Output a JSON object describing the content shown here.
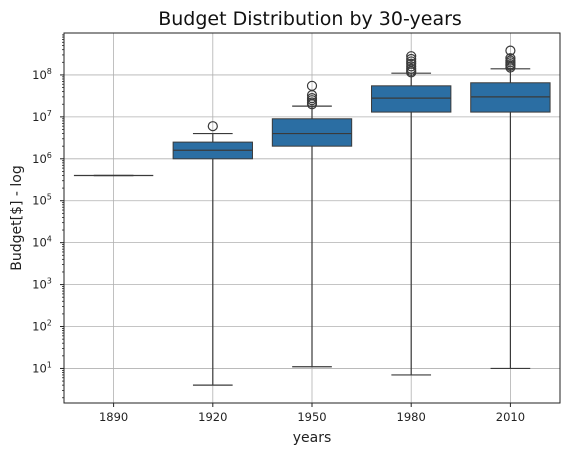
{
  "chart_data": {
    "type": "box",
    "title": "Budget Distribution by 30-years",
    "xlabel": "years",
    "ylabel": "Budget[$] - log",
    "y_scale": "log",
    "ylim": [
      1.5,
      1000000000
    ],
    "grid": true,
    "color": "#2b6ea3",
    "categories": [
      "1890",
      "1920",
      "1950",
      "1980",
      "2010"
    ],
    "y_ticks": [
      {
        "base": "10",
        "exp": "1"
      },
      {
        "base": "10",
        "exp": "2"
      },
      {
        "base": "10",
        "exp": "3"
      },
      {
        "base": "10",
        "exp": "4"
      },
      {
        "base": "10",
        "exp": "5"
      },
      {
        "base": "10",
        "exp": "6"
      },
      {
        "base": "10",
        "exp": "7"
      },
      {
        "base": "10",
        "exp": "8"
      }
    ],
    "boxes": [
      {
        "category": "1890",
        "whisker_low": 400000,
        "q1": 400000,
        "median": 400000,
        "q3": 400000,
        "whisker_high": 400000,
        "outliers": []
      },
      {
        "category": "1920",
        "whisker_low": 4,
        "q1": 1000000,
        "median": 1600000,
        "q3": 2500000,
        "whisker_high": 4000000,
        "outliers": [
          6000000
        ]
      },
      {
        "category": "1950",
        "whisker_low": 11,
        "q1": 2000000,
        "median": 4000000,
        "q3": 9000000,
        "whisker_high": 18000000,
        "outliers": [
          20000000,
          22000000,
          25000000,
          28000000,
          33000000,
          55000000
        ]
      },
      {
        "category": "1980",
        "whisker_low": 7,
        "q1": 13000000,
        "median": 28000000,
        "q3": 55000000,
        "whisker_high": 110000000,
        "outliers": [
          115000000,
          125000000,
          140000000,
          160000000,
          185000000,
          210000000,
          240000000,
          280000000
        ]
      },
      {
        "category": "2010",
        "whisker_low": 10,
        "q1": 13000000,
        "median": 30000000,
        "q3": 65000000,
        "whisker_high": 140000000,
        "outliers": [
          150000000,
          165000000,
          180000000,
          200000000,
          220000000,
          250000000,
          380000000
        ]
      }
    ]
  }
}
